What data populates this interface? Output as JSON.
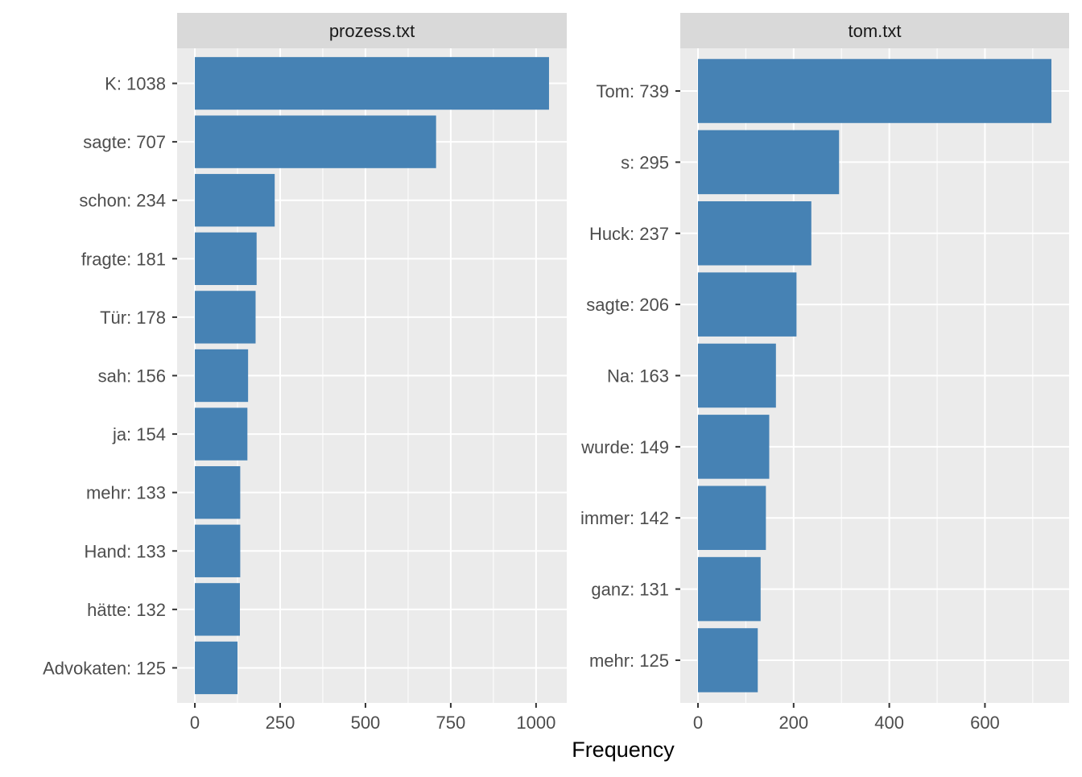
{
  "chart_data": {
    "type": "bar",
    "orientation": "horizontal",
    "xlabel": "Frequency",
    "bar_color": "#4682B4",
    "panel_background": "#EBEBEB",
    "strip_background": "#D9D9D9",
    "grid": true,
    "panels": [
      {
        "title": "prozess.txt",
        "categories": [
          "K: 1038",
          "sagte: 707",
          "schon: 234",
          "fragte: 181",
          "Tür: 178",
          "sah: 156",
          "ja: 154",
          "mehr: 133",
          "Hand: 133",
          "hätte: 132",
          "Advokaten: 125"
        ],
        "values": [
          1038,
          707,
          234,
          181,
          178,
          156,
          154,
          133,
          133,
          132,
          125
        ],
        "xlim": [
          -52,
          1090
        ],
        "xticks": [
          0,
          250,
          500,
          750,
          1000
        ]
      },
      {
        "title": "tom.txt",
        "categories": [
          "Tom: 739",
          "s: 295",
          "Huck: 237",
          "sagte: 206",
          "Na: 163",
          "wurde: 149",
          "immer: 142",
          "ganz: 131",
          "mehr: 125"
        ],
        "values": [
          739,
          295,
          237,
          206,
          163,
          149,
          142,
          131,
          125
        ],
        "xlim": [
          -37,
          776
        ],
        "xticks": [
          0,
          200,
          400,
          600
        ]
      }
    ]
  }
}
